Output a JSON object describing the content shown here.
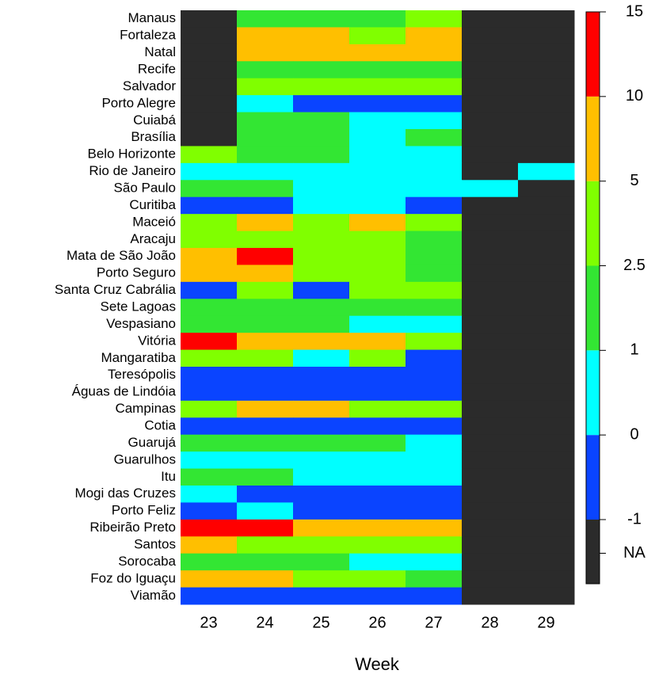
{
  "chart_data": {
    "type": "heatmap",
    "x": [
      23,
      24,
      25,
      26,
      27,
      28,
      29
    ],
    "x_label": "Week",
    "categories": [
      "Manaus",
      "Fortaleza",
      "Natal",
      "Recife",
      "Salvador",
      "Porto Alegre",
      "Cuiabá",
      "Brasília",
      "Belo Horizonte",
      "Rio de Janeiro",
      "São Paulo",
      "Curitiba",
      "Maceió",
      "Aracaju",
      "Mata de São João",
      "Porto Seguro",
      "Santa Cruz Cabrália",
      "Sete Lagoas",
      "Vespasiano",
      "Vitória",
      "Mangaratiba",
      "Teresópolis",
      "Águas de Lindóia",
      "Campinas",
      "Cotia",
      "Guarujá",
      "Guarulhos",
      "Itu",
      "Mogi das Cruzes",
      "Porto Feliz",
      "Ribeirão Preto",
      "Santos",
      "Sorocaba",
      "Foz do Iguaçu",
      "Viamão"
    ],
    "values": [
      [
        null,
        1.75,
        1.75,
        1.75,
        3.75,
        null,
        null
      ],
      [
        null,
        7.5,
        7.5,
        3.75,
        7.5,
        null,
        null
      ],
      [
        null,
        7.5,
        7.5,
        7.5,
        7.5,
        null,
        null
      ],
      [
        null,
        1.75,
        1.75,
        1.75,
        1.75,
        null,
        null
      ],
      [
        null,
        3.75,
        3.75,
        3.75,
        3.75,
        null,
        null
      ],
      [
        null,
        0.5,
        -0.5,
        -0.5,
        -0.5,
        null,
        null
      ],
      [
        null,
        1.75,
        1.75,
        0.5,
        0.5,
        null,
        null
      ],
      [
        null,
        1.75,
        1.75,
        0.5,
        1.75,
        null,
        null
      ],
      [
        3.75,
        1.75,
        1.75,
        0.5,
        0.5,
        null,
        null
      ],
      [
        0.5,
        0.5,
        0.5,
        0.5,
        0.5,
        null,
        0.5
      ],
      [
        1.75,
        1.75,
        0.5,
        0.5,
        0.5,
        0.5,
        null
      ],
      [
        -0.5,
        -0.5,
        0.5,
        0.5,
        -0.5,
        null,
        null
      ],
      [
        3.75,
        7.5,
        3.75,
        7.5,
        3.75,
        null,
        null
      ],
      [
        3.75,
        3.75,
        3.75,
        3.75,
        1.75,
        null,
        null
      ],
      [
        7.5,
        12.5,
        3.75,
        3.75,
        1.75,
        null,
        null
      ],
      [
        7.5,
        7.5,
        3.75,
        3.75,
        1.75,
        null,
        null
      ],
      [
        -0.5,
        3.75,
        -0.5,
        3.75,
        3.75,
        null,
        null
      ],
      [
        1.75,
        1.75,
        1.75,
        1.75,
        1.75,
        null,
        null
      ],
      [
        1.75,
        1.75,
        1.75,
        0.5,
        0.5,
        null,
        null
      ],
      [
        12.5,
        7.5,
        7.5,
        7.5,
        3.75,
        null,
        null
      ],
      [
        3.75,
        3.75,
        0.5,
        3.75,
        -0.5,
        null,
        null
      ],
      [
        -0.5,
        -0.5,
        -0.5,
        -0.5,
        -0.5,
        null,
        null
      ],
      [
        -0.5,
        -0.5,
        -0.5,
        -0.5,
        -0.5,
        null,
        null
      ],
      [
        3.75,
        7.5,
        7.5,
        3.75,
        3.75,
        null,
        null
      ],
      [
        -0.5,
        -0.5,
        -0.5,
        -0.5,
        -0.5,
        null,
        null
      ],
      [
        1.75,
        1.75,
        1.75,
        1.75,
        0.5,
        null,
        null
      ],
      [
        0.5,
        0.5,
        0.5,
        0.5,
        0.5,
        null,
        null
      ],
      [
        1.75,
        1.75,
        0.5,
        0.5,
        0.5,
        null,
        null
      ],
      [
        0.5,
        -0.5,
        -0.5,
        -0.5,
        -0.5,
        null,
        null
      ],
      [
        -0.5,
        0.5,
        -0.5,
        -0.5,
        -0.5,
        null,
        null
      ],
      [
        12.5,
        12.5,
        7.5,
        7.5,
        7.5,
        null,
        null
      ],
      [
        7.5,
        3.75,
        3.75,
        3.75,
        3.75,
        null,
        null
      ],
      [
        1.75,
        1.75,
        1.75,
        0.5,
        0.5,
        null,
        null
      ],
      [
        7.5,
        7.5,
        3.75,
        3.75,
        1.75,
        null,
        null
      ],
      [
        -0.5,
        -0.5,
        -0.5,
        -0.5,
        -0.5,
        null,
        null
      ]
    ],
    "legend_ticks": [
      -1,
      0,
      1,
      2.5,
      5,
      10,
      15
    ],
    "colors": [
      "#0a44ff",
      "#00ffff",
      "#33e633",
      "#80ff00",
      "#ffbf00",
      "#ff0000"
    ],
    "na_label": "NA",
    "na_color": "#2b2b2b"
  }
}
